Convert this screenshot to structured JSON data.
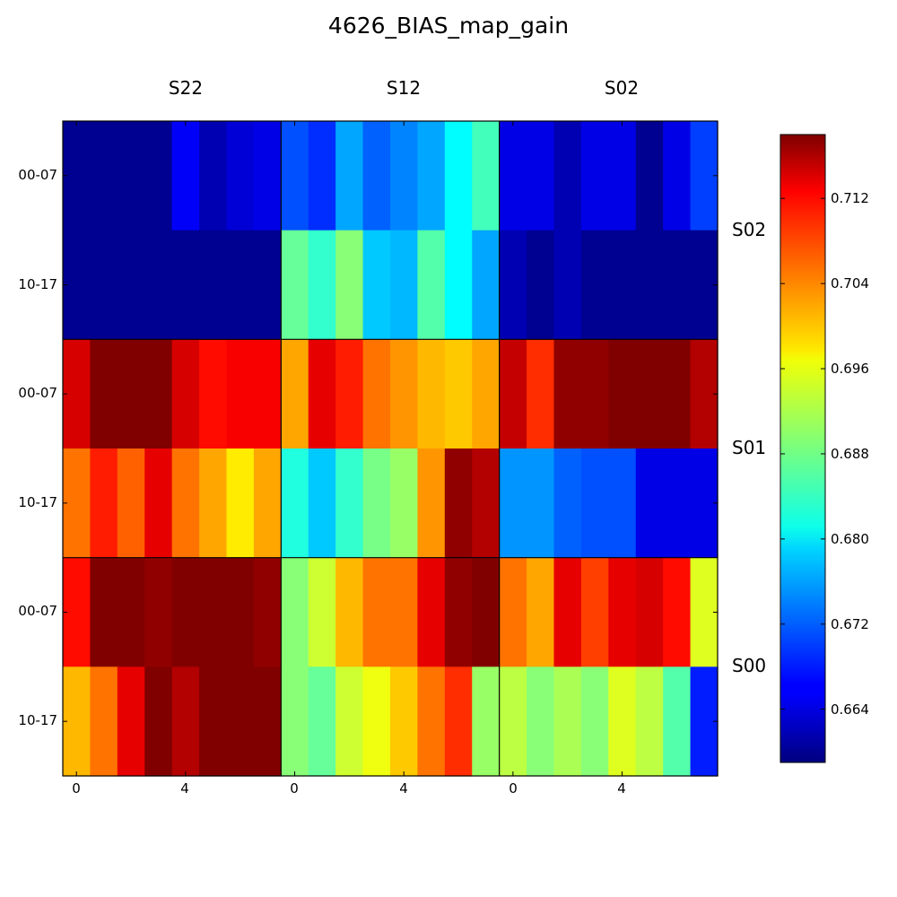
{
  "chart_data": {
    "type": "heatmap",
    "title": "4626_BIAS_map_gain",
    "columns": [
      "S22",
      "S12",
      "S02"
    ],
    "rows": [
      "S02",
      "S01",
      "S00"
    ],
    "y_tick_labels": [
      "00-07",
      "10-17"
    ],
    "x_tick_labels": [
      "0",
      "4"
    ],
    "colorbar": {
      "colormap": "jet",
      "range": [
        0.659,
        0.718
      ],
      "ticks": [
        0.664,
        0.672,
        0.68,
        0.688,
        0.696,
        0.704,
        0.712
      ],
      "tick_labels": [
        "0.664",
        "0.672",
        "0.680",
        "0.688",
        "0.696",
        "0.704",
        "0.712"
      ]
    },
    "cells": [
      [
        [
          0.66,
          0.66,
          0.66,
          0.66,
          0.666,
          0.662,
          0.664,
          0.665
        ],
        [
          0.66,
          0.66,
          0.66,
          0.66,
          0.66,
          0.66,
          0.66,
          0.66
        ],
        [
          0.671,
          0.669,
          0.676,
          0.672,
          0.674,
          0.676,
          0.681,
          0.685
        ],
        [
          0.687,
          0.684,
          0.689,
          0.678,
          0.677,
          0.686,
          0.681,
          0.676
        ],
        [
          0.665,
          0.665,
          0.662,
          0.665,
          0.665,
          0.66,
          0.665,
          0.67
        ],
        [
          0.662,
          0.66,
          0.662,
          0.66,
          0.66,
          0.66,
          0.66,
          0.66
        ]
      ],
      [
        [
          0.713,
          0.718,
          0.718,
          0.718,
          0.713,
          0.71,
          0.711,
          0.711
        ],
        [
          0.704,
          0.709,
          0.705,
          0.712,
          0.704,
          0.701,
          0.697,
          0.701
        ],
        [
          0.701,
          0.712,
          0.709,
          0.704,
          0.702,
          0.7,
          0.699,
          0.701
        ],
        [
          0.683,
          0.678,
          0.684,
          0.688,
          0.69,
          0.702,
          0.717,
          0.715
        ],
        [
          0.714,
          0.708,
          0.717,
          0.717,
          0.718,
          0.718,
          0.718,
          0.715
        ],
        [
          0.675,
          0.675,
          0.672,
          0.671,
          0.671,
          0.665,
          0.665,
          0.665
        ]
      ],
      [
        [
          0.71,
          0.718,
          0.718,
          0.717,
          0.718,
          0.718,
          0.718,
          0.717
        ],
        [
          0.7,
          0.704,
          0.712,
          0.718,
          0.715,
          0.718,
          0.718,
          0.718
        ],
        [
          0.689,
          0.693,
          0.7,
          0.704,
          0.704,
          0.712,
          0.717,
          0.718
        ],
        [
          0.689,
          0.687,
          0.693,
          0.695,
          0.699,
          0.704,
          0.708,
          0.69
        ],
        [
          0.704,
          0.701,
          0.712,
          0.707,
          0.712,
          0.713,
          0.71,
          0.694
        ],
        [
          0.692,
          0.689,
          0.691,
          0.689,
          0.694,
          0.692,
          0.686,
          0.668
        ]
      ]
    ]
  }
}
